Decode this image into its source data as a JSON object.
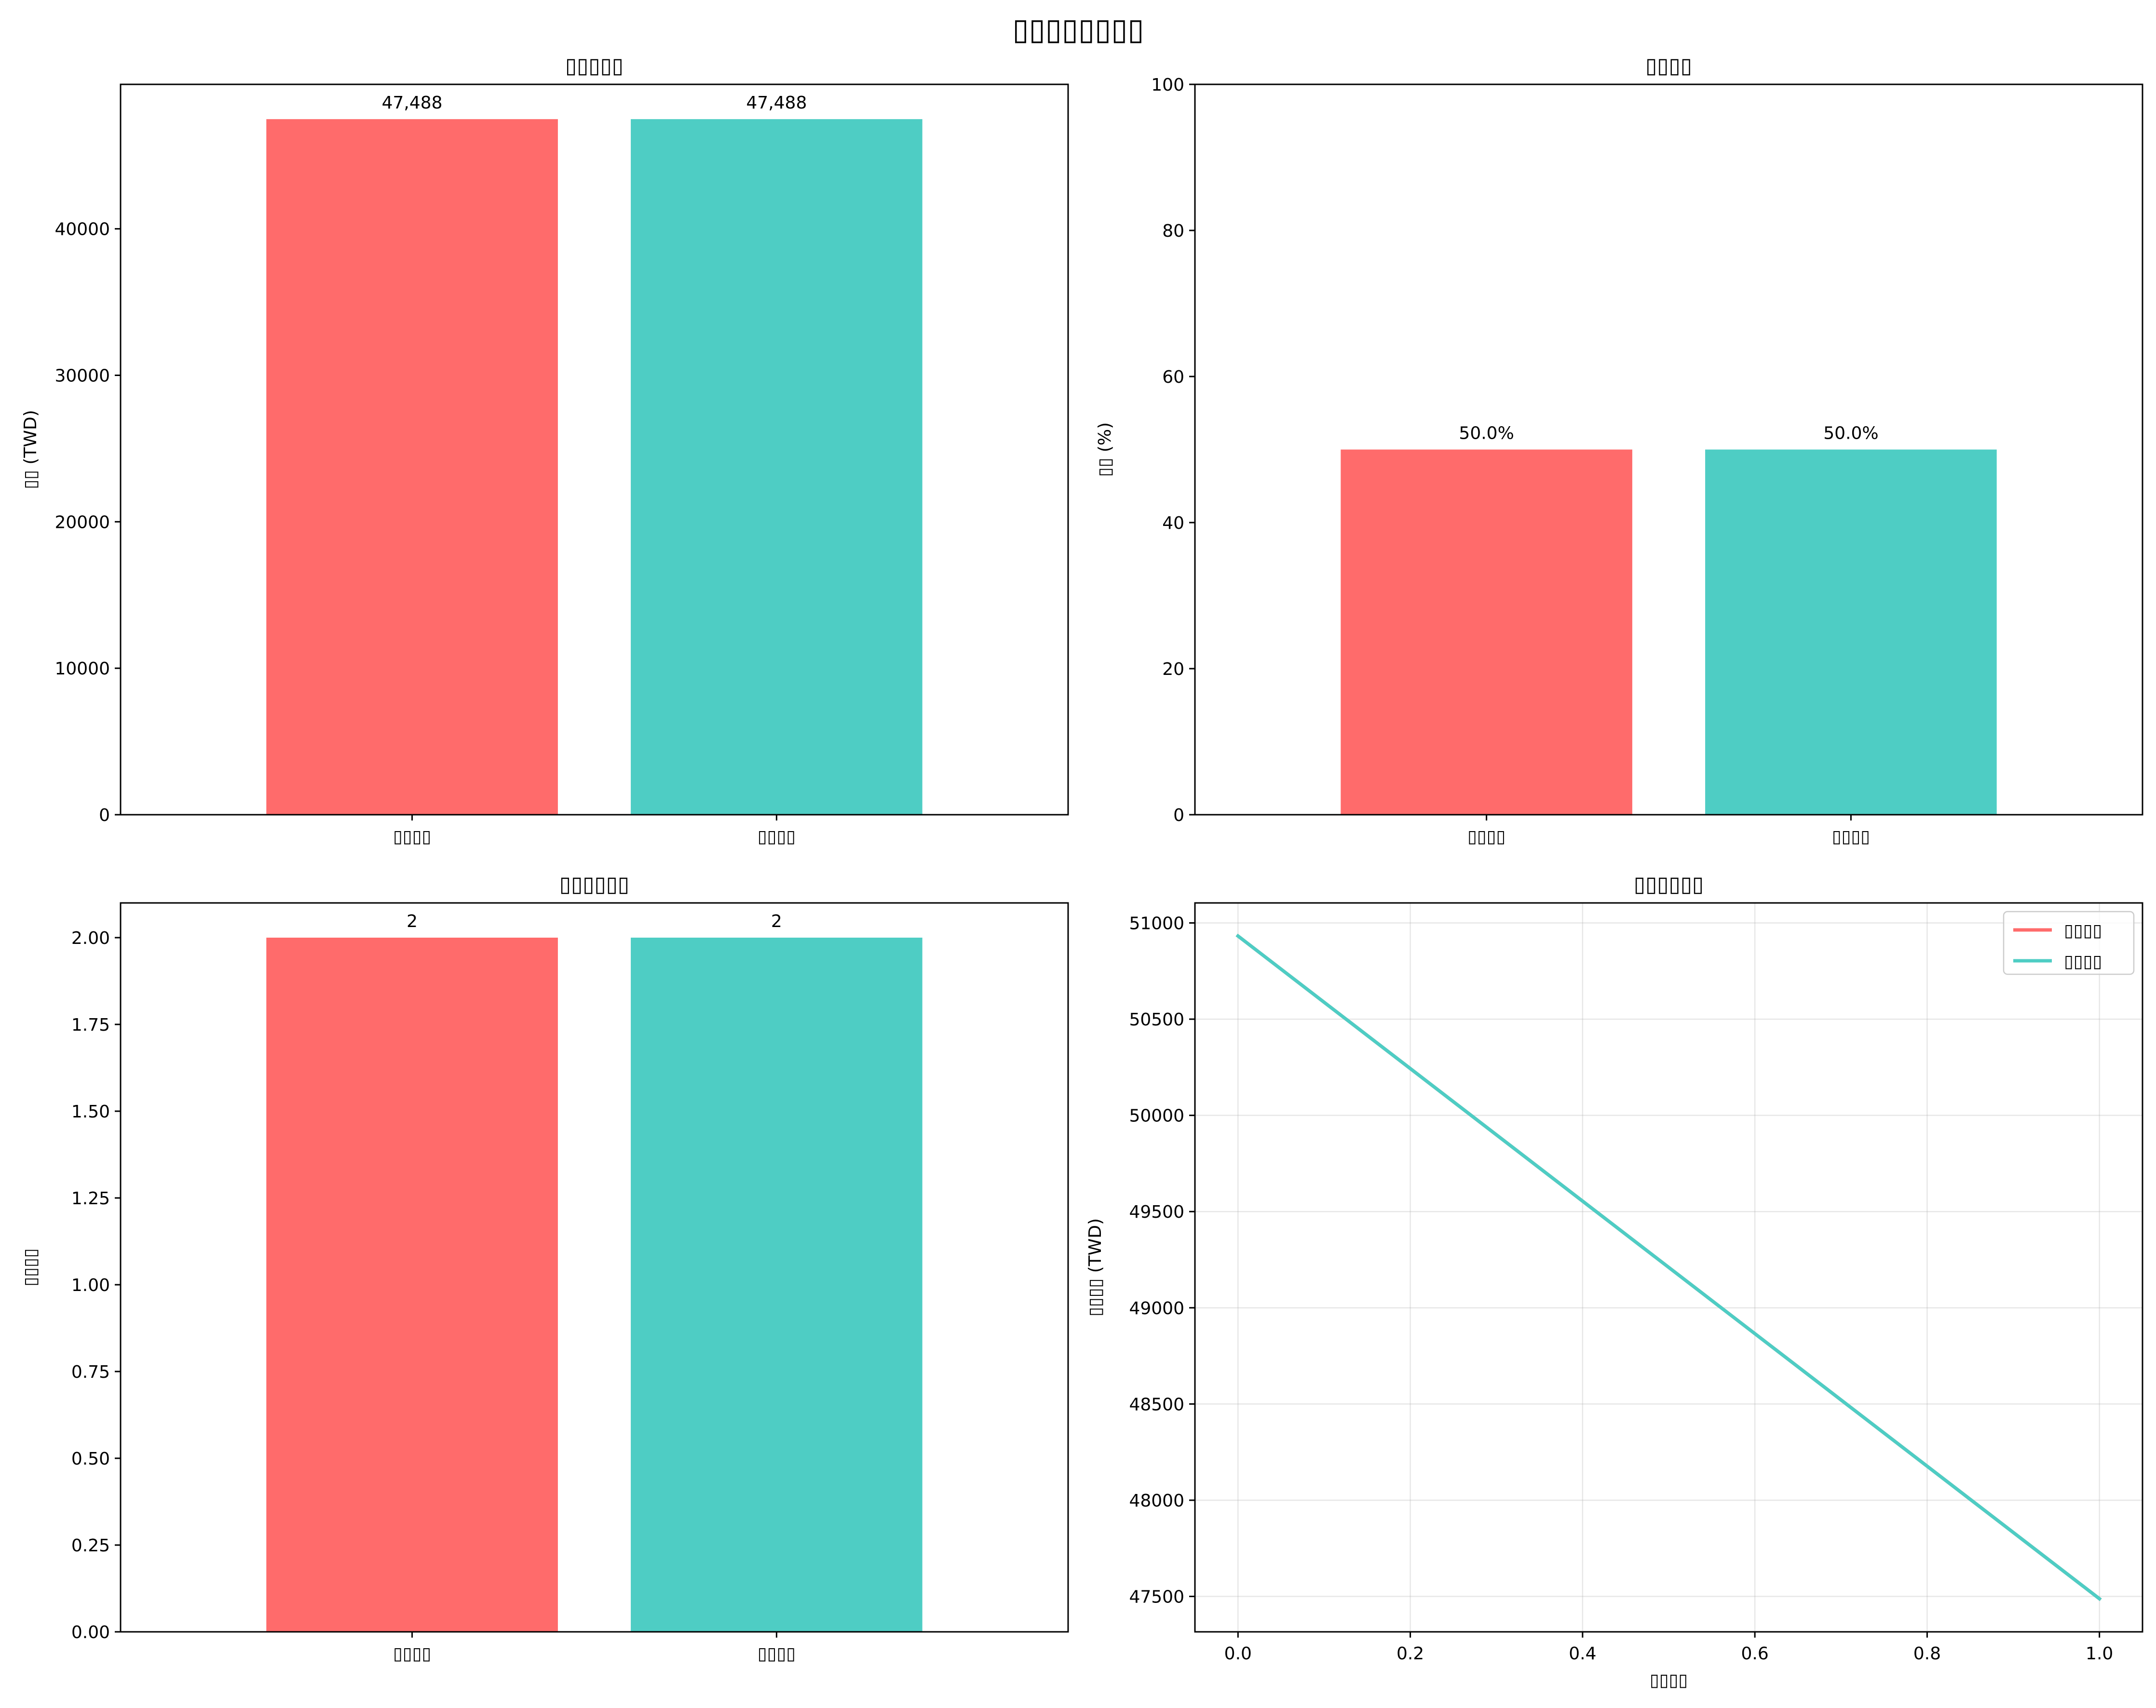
{
  "figure": {
    "suptitle": "▯▯▯▯▯▯▯▯"
  },
  "chart_data": [
    {
      "type": "bar",
      "title": "▯▯▯▯▯",
      "xlabel": "",
      "ylabel": "▯▯ (TWD)",
      "categories": [
        "▯▯▯▯",
        "▯▯▯▯"
      ],
      "values": [
        47488,
        47488
      ],
      "value_labels": [
        "47,488",
        "47,488"
      ],
      "colors": [
        "#ff6b6b",
        "#4ecdc4"
      ],
      "ylim": [
        0,
        49862.4
      ],
      "yticks": [
        0,
        10000,
        20000,
        30000,
        40000
      ],
      "ytick_labels": [
        "0",
        "10000",
        "20000",
        "30000",
        "40000"
      ],
      "grid": false
    },
    {
      "type": "bar",
      "title": "▯▯▯▯",
      "xlabel": "",
      "ylabel": "▯▯ (%)",
      "categories": [
        "▯▯▯▯",
        "▯▯▯▯"
      ],
      "values": [
        50.0,
        50.0
      ],
      "value_labels": [
        "50.0%",
        "50.0%"
      ],
      "colors": [
        "#ff6b6b",
        "#4ecdc4"
      ],
      "ylim": [
        0,
        100
      ],
      "yticks": [
        0,
        20,
        40,
        60,
        80,
        100
      ],
      "ytick_labels": [
        "0",
        "20",
        "40",
        "60",
        "80",
        "100"
      ],
      "grid": false
    },
    {
      "type": "bar",
      "title": "▯▯▯▯▯▯",
      "xlabel": "",
      "ylabel": "▯▯▯▯",
      "categories": [
        "▯▯▯▯",
        "▯▯▯▯"
      ],
      "values": [
        2,
        2
      ],
      "value_labels": [
        "2",
        "2"
      ],
      "colors": [
        "#ff6b6b",
        "#4ecdc4"
      ],
      "ylim": [
        0,
        2.1
      ],
      "yticks": [
        0,
        0.25,
        0.5,
        0.75,
        1.0,
        1.25,
        1.5,
        1.75,
        2.0
      ],
      "ytick_labels": [
        "0.00",
        "0.25",
        "0.50",
        "0.75",
        "1.00",
        "1.25",
        "1.50",
        "1.75",
        "2.00"
      ],
      "grid": false
    },
    {
      "type": "line",
      "title": "▯▯▯▯▯▯",
      "xlabel": "▯▯▯▯",
      "ylabel": "▯▯▯▯ (TWD)",
      "series": [
        {
          "name": "▯▯▯▯",
          "color": "#ff6b6b",
          "x": [
            0,
            1
          ],
          "y": [
            50932,
            47488
          ]
        },
        {
          "name": "▯▯▯▯",
          "color": "#4ecdc4",
          "x": [
            0,
            1
          ],
          "y": [
            50932,
            47488
          ]
        }
      ],
      "xlim": [
        -0.05,
        1.05
      ],
      "ylim": [
        47316,
        51104
      ],
      "xticks": [
        0,
        0.2,
        0.4,
        0.6,
        0.8,
        1.0
      ],
      "xtick_labels": [
        "0.0",
        "0.2",
        "0.4",
        "0.6",
        "0.8",
        "1.0"
      ],
      "yticks": [
        47500,
        48000,
        48500,
        49000,
        49500,
        50000,
        50500,
        51000
      ],
      "ytick_labels": [
        "47500",
        "48000",
        "48500",
        "49000",
        "49500",
        "50000",
        "50500",
        "51000"
      ],
      "grid": true,
      "legend": "top-right"
    }
  ]
}
